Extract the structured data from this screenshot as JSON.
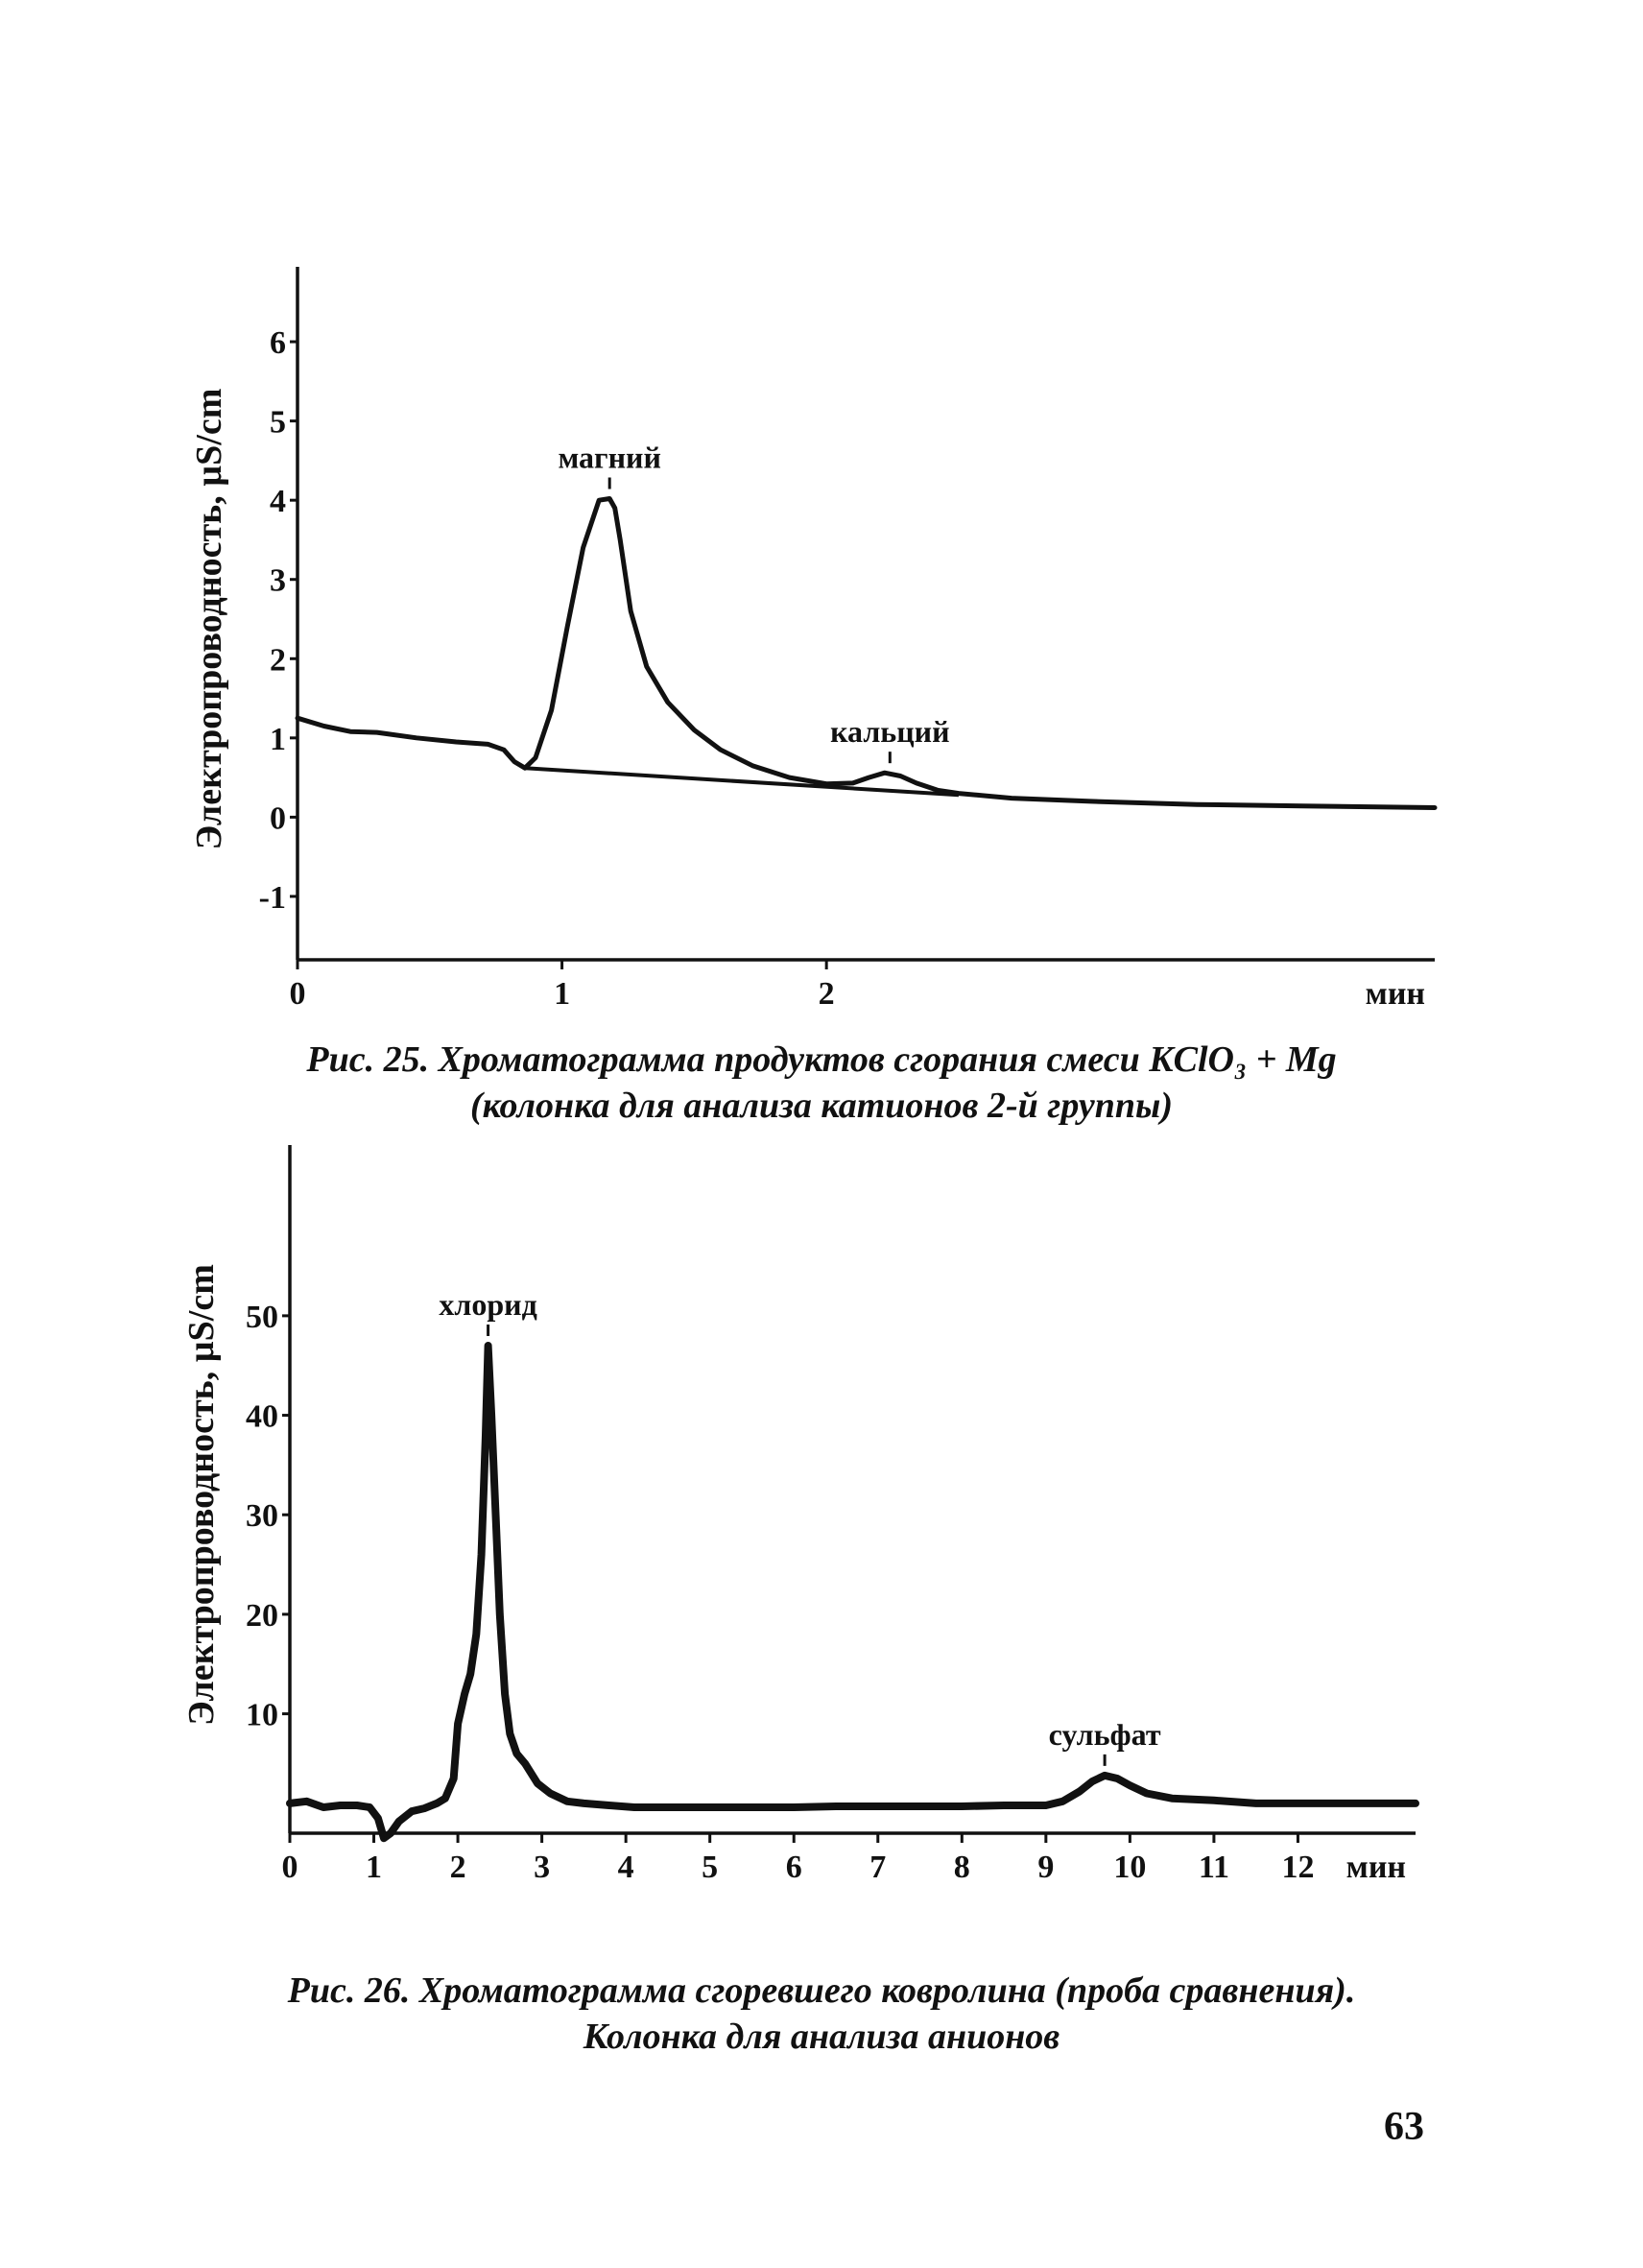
{
  "chart_data": [
    {
      "type": "line",
      "ylabel": "Электропроводность, µS/cm",
      "xlabel": "",
      "x_unit_label": "мин",
      "x_tick_labels": [
        "0",
        "1",
        "2"
      ],
      "x_ticks": [
        0,
        1,
        2
      ],
      "y_ticks": [
        -1,
        0,
        1,
        2,
        3,
        4,
        5,
        6
      ],
      "y_tick_labels": [
        "-1",
        "0",
        "1",
        "2",
        "3",
        "4",
        "5",
        "6"
      ],
      "xlim": [
        0,
        4.3
      ],
      "ylim": [
        -1.8,
        6.8
      ],
      "series": [
        {
          "x": [
            0,
            0.1,
            0.2,
            0.3,
            0.45,
            0.6,
            0.72,
            0.78,
            0.82,
            0.86,
            0.9,
            0.96,
            1.02,
            1.08,
            1.14,
            1.18,
            1.2,
            1.22,
            1.26,
            1.32,
            1.4,
            1.5,
            1.6,
            1.72,
            1.86,
            2.0,
            2.1,
            2.16,
            2.22,
            2.28,
            2.34,
            2.42,
            2.5,
            2.7,
            3.0,
            3.4,
            3.8,
            4.3
          ],
          "y": [
            1.25,
            1.15,
            1.08,
            1.07,
            1.0,
            0.95,
            0.92,
            0.85,
            0.7,
            0.62,
            0.75,
            1.35,
            2.4,
            3.4,
            4.0,
            4.02,
            3.9,
            3.5,
            2.6,
            1.9,
            1.45,
            1.1,
            0.85,
            0.65,
            0.5,
            0.42,
            0.43,
            0.5,
            0.56,
            0.52,
            0.43,
            0.34,
            0.3,
            0.24,
            0.2,
            0.16,
            0.14,
            0.12
          ]
        }
      ],
      "baseline": {
        "x": [
          0.86,
          2.5
        ],
        "y": [
          0.62,
          0.28
        ]
      },
      "annotations": [
        {
          "text": "магний",
          "x": 1.18,
          "y": 4.02
        },
        {
          "text": "кальций",
          "x": 2.24,
          "y": 0.56
        }
      ],
      "grid": false
    },
    {
      "type": "line",
      "ylabel": "Электропроводность, µS/cm",
      "xlabel": "",
      "x_unit_label": "мин",
      "x_ticks": [
        0,
        1,
        2,
        3,
        4,
        5,
        6,
        7,
        8,
        9,
        10,
        11,
        12
      ],
      "x_tick_labels": [
        "0",
        "1",
        "2",
        "3",
        "4",
        "5",
        "6",
        "7",
        "8",
        "9",
        "10",
        "11",
        "12"
      ],
      "y_ticks": [
        10,
        20,
        30,
        40,
        50
      ],
      "y_tick_labels": [
        "10",
        "20",
        "30",
        "40",
        "50"
      ],
      "xlim": [
        0,
        13.4
      ],
      "ylim": [
        -2,
        66
      ],
      "series": [
        {
          "x": [
            0,
            0.2,
            0.4,
            0.6,
            0.8,
            0.95,
            1.05,
            1.12,
            1.2,
            1.3,
            1.45,
            1.6,
            1.75,
            1.85,
            1.95,
            2.0,
            2.08,
            2.15,
            2.22,
            2.28,
            2.33,
            2.36,
            2.4,
            2.45,
            2.5,
            2.56,
            2.62,
            2.7,
            2.8,
            2.95,
            3.1,
            3.3,
            3.5,
            3.8,
            4.1,
            4.5,
            5,
            5.5,
            6,
            6.5,
            7,
            7.5,
            8,
            8.5,
            9,
            9.2,
            9.4,
            9.55,
            9.7,
            9.85,
            10.0,
            10.2,
            10.5,
            11,
            11.5,
            12,
            12.5,
            13.4
          ],
          "y": [
            1.0,
            1.2,
            0.6,
            0.8,
            0.8,
            0.6,
            -0.5,
            -2.5,
            -2.0,
            -0.8,
            0.2,
            0.5,
            1.0,
            1.5,
            3.5,
            9,
            12,
            14,
            18,
            26,
            38,
            47,
            40,
            30,
            20,
            12,
            8,
            6,
            5,
            3,
            2,
            1.2,
            1.0,
            0.8,
            0.6,
            0.6,
            0.6,
            0.6,
            0.6,
            0.7,
            0.7,
            0.7,
            0.7,
            0.8,
            0.8,
            1.2,
            2.2,
            3.2,
            3.8,
            3.5,
            2.8,
            2.0,
            1.5,
            1.3,
            1.0,
            1.0,
            1.0,
            1.0
          ]
        }
      ],
      "annotations": [
        {
          "text": "хлорид",
          "x": 2.36,
          "y": 47
        },
        {
          "text": "сульфат",
          "x": 9.7,
          "y": 3.8
        }
      ],
      "grid": false
    }
  ],
  "captions": {
    "fig25_line1": "Рис. 25. Хроматограмма продуктов сгорания смеси KClO₃ + Mg",
    "fig25_line2": "(колонка для анализа катионов 2-й группы)",
    "fig26_line1": "Рис. 26. Хроматограмма сгоревшего ковролина (проба сравнения).",
    "fig26_line2": "Колонка для анализа анионов"
  },
  "page_number": "63"
}
